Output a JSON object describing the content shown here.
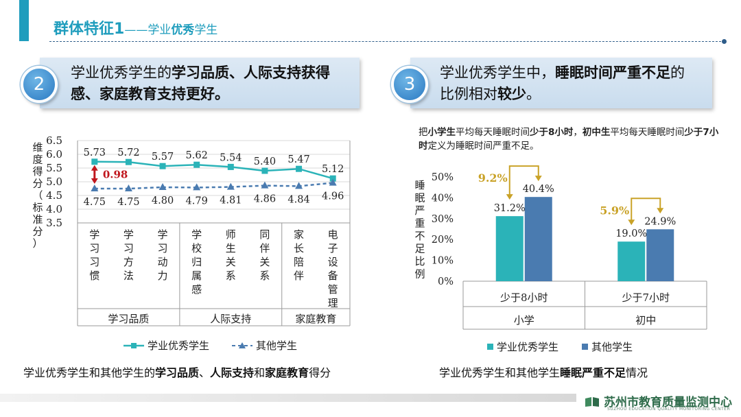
{
  "header": {
    "title_main": "群体特征1",
    "title_dash": "——",
    "title_pre": "学业",
    "title_bold": "优秀",
    "title_post": "学生"
  },
  "left_banner": {
    "number": "2",
    "t1": "学业优秀学生的",
    "b1": "学习品质、人际支持获得",
    "b2": "感、家庭教育支持更好。"
  },
  "right_banner": {
    "number": "3",
    "t1": "学业优秀学生中，",
    "b1": "睡眠时间严重不足",
    "t2": "的",
    "t3": "比例相对",
    "b2": "较少",
    "t4": "。"
  },
  "note": {
    "p1": "把",
    "b1": "小学生",
    "p2": "平均每天睡眠时间",
    "b2": "少于8小时",
    "p3": "，",
    "b3": "初中生",
    "p4": "平均每天睡眠时间",
    "b4": "少于7小时",
    "p5": "定义为睡眠时间严重不足。"
  },
  "left_caption": {
    "p1": "学业优秀学生和其他学生的",
    "b1": "学习品质",
    "p2": "、",
    "b2": "人际支持",
    "p3": "和",
    "b3": "家庭教育",
    "p4": "得分"
  },
  "right_caption": {
    "p1": "学业优秀学生和其他学生",
    "b1": "睡眠严重不足",
    "p2": "情况"
  },
  "chart_data": [
    {
      "type": "line",
      "ylabel": "维度得分（标准分）",
      "ylim": [
        3.5,
        6.5
      ],
      "yticks": [
        "6.5",
        "6.0",
        "5.5",
        "5.0",
        "4.5",
        "4.0",
        "3.5"
      ],
      "categories": [
        "学习习惯",
        "学习方法",
        "学习动力",
        "学校归属感",
        "师生关系",
        "同伴关系",
        "家长陪伴",
        "电子设备管理"
      ],
      "groups": [
        {
          "label": "学习品质",
          "count": 3
        },
        {
          "label": "人际支持",
          "count": 3
        },
        {
          "label": "家庭教育",
          "count": 2
        }
      ],
      "series": [
        {
          "name": "学业优秀学生",
          "values": [
            5.73,
            5.72,
            5.57,
            5.62,
            5.54,
            5.4,
            5.47,
            5.12
          ],
          "labels": [
            "5.73",
            "5.72",
            "5.57",
            "5.62",
            "5.54",
            "5.40",
            "5.47",
            "5.12"
          ],
          "color": "#2bb3b8"
        },
        {
          "name": "其他学生",
          "values": [
            4.75,
            4.75,
            4.8,
            4.79,
            4.81,
            4.86,
            4.84,
            4.96
          ],
          "labels": [
            "4.75",
            "4.75",
            "4.80",
            "4.79",
            "4.81",
            "4.86",
            "4.84",
            "4.96"
          ],
          "color": "#4a7bb0"
        }
      ],
      "annotation": {
        "text": "0.98",
        "color": "#c0161d"
      },
      "grid": true,
      "legend": "bottom"
    },
    {
      "type": "bar",
      "ylabel": "睡眠严重不足比例",
      "ylim": [
        0,
        50
      ],
      "yticks": [
        "50%",
        "40%",
        "30%",
        "20%",
        "10%",
        "0%"
      ],
      "categories": [
        "少于8小时",
        "少于7小时"
      ],
      "groups": [
        "小学",
        "初中"
      ],
      "series": [
        {
          "name": "学业优秀学生",
          "values": [
            31.2,
            19.0
          ],
          "labels": [
            "31.2%",
            "19.0%"
          ],
          "color": "#2bb3b8"
        },
        {
          "name": "其他学生",
          "values": [
            40.4,
            24.9
          ],
          "labels": [
            "40.4%",
            "24.9%"
          ],
          "color": "#4a7bb0"
        }
      ],
      "differences": [
        "9.2%",
        "5.9%"
      ],
      "annotation_color": "#c9a227",
      "grid": false,
      "legend": "bottom"
    }
  ],
  "footer": {
    "logo": "苏州市教育质量监测中心",
    "english": "SUZHOU EDUCATION QUALITY MONITORING CENTER",
    "logo_color": "#2e6b4a"
  }
}
